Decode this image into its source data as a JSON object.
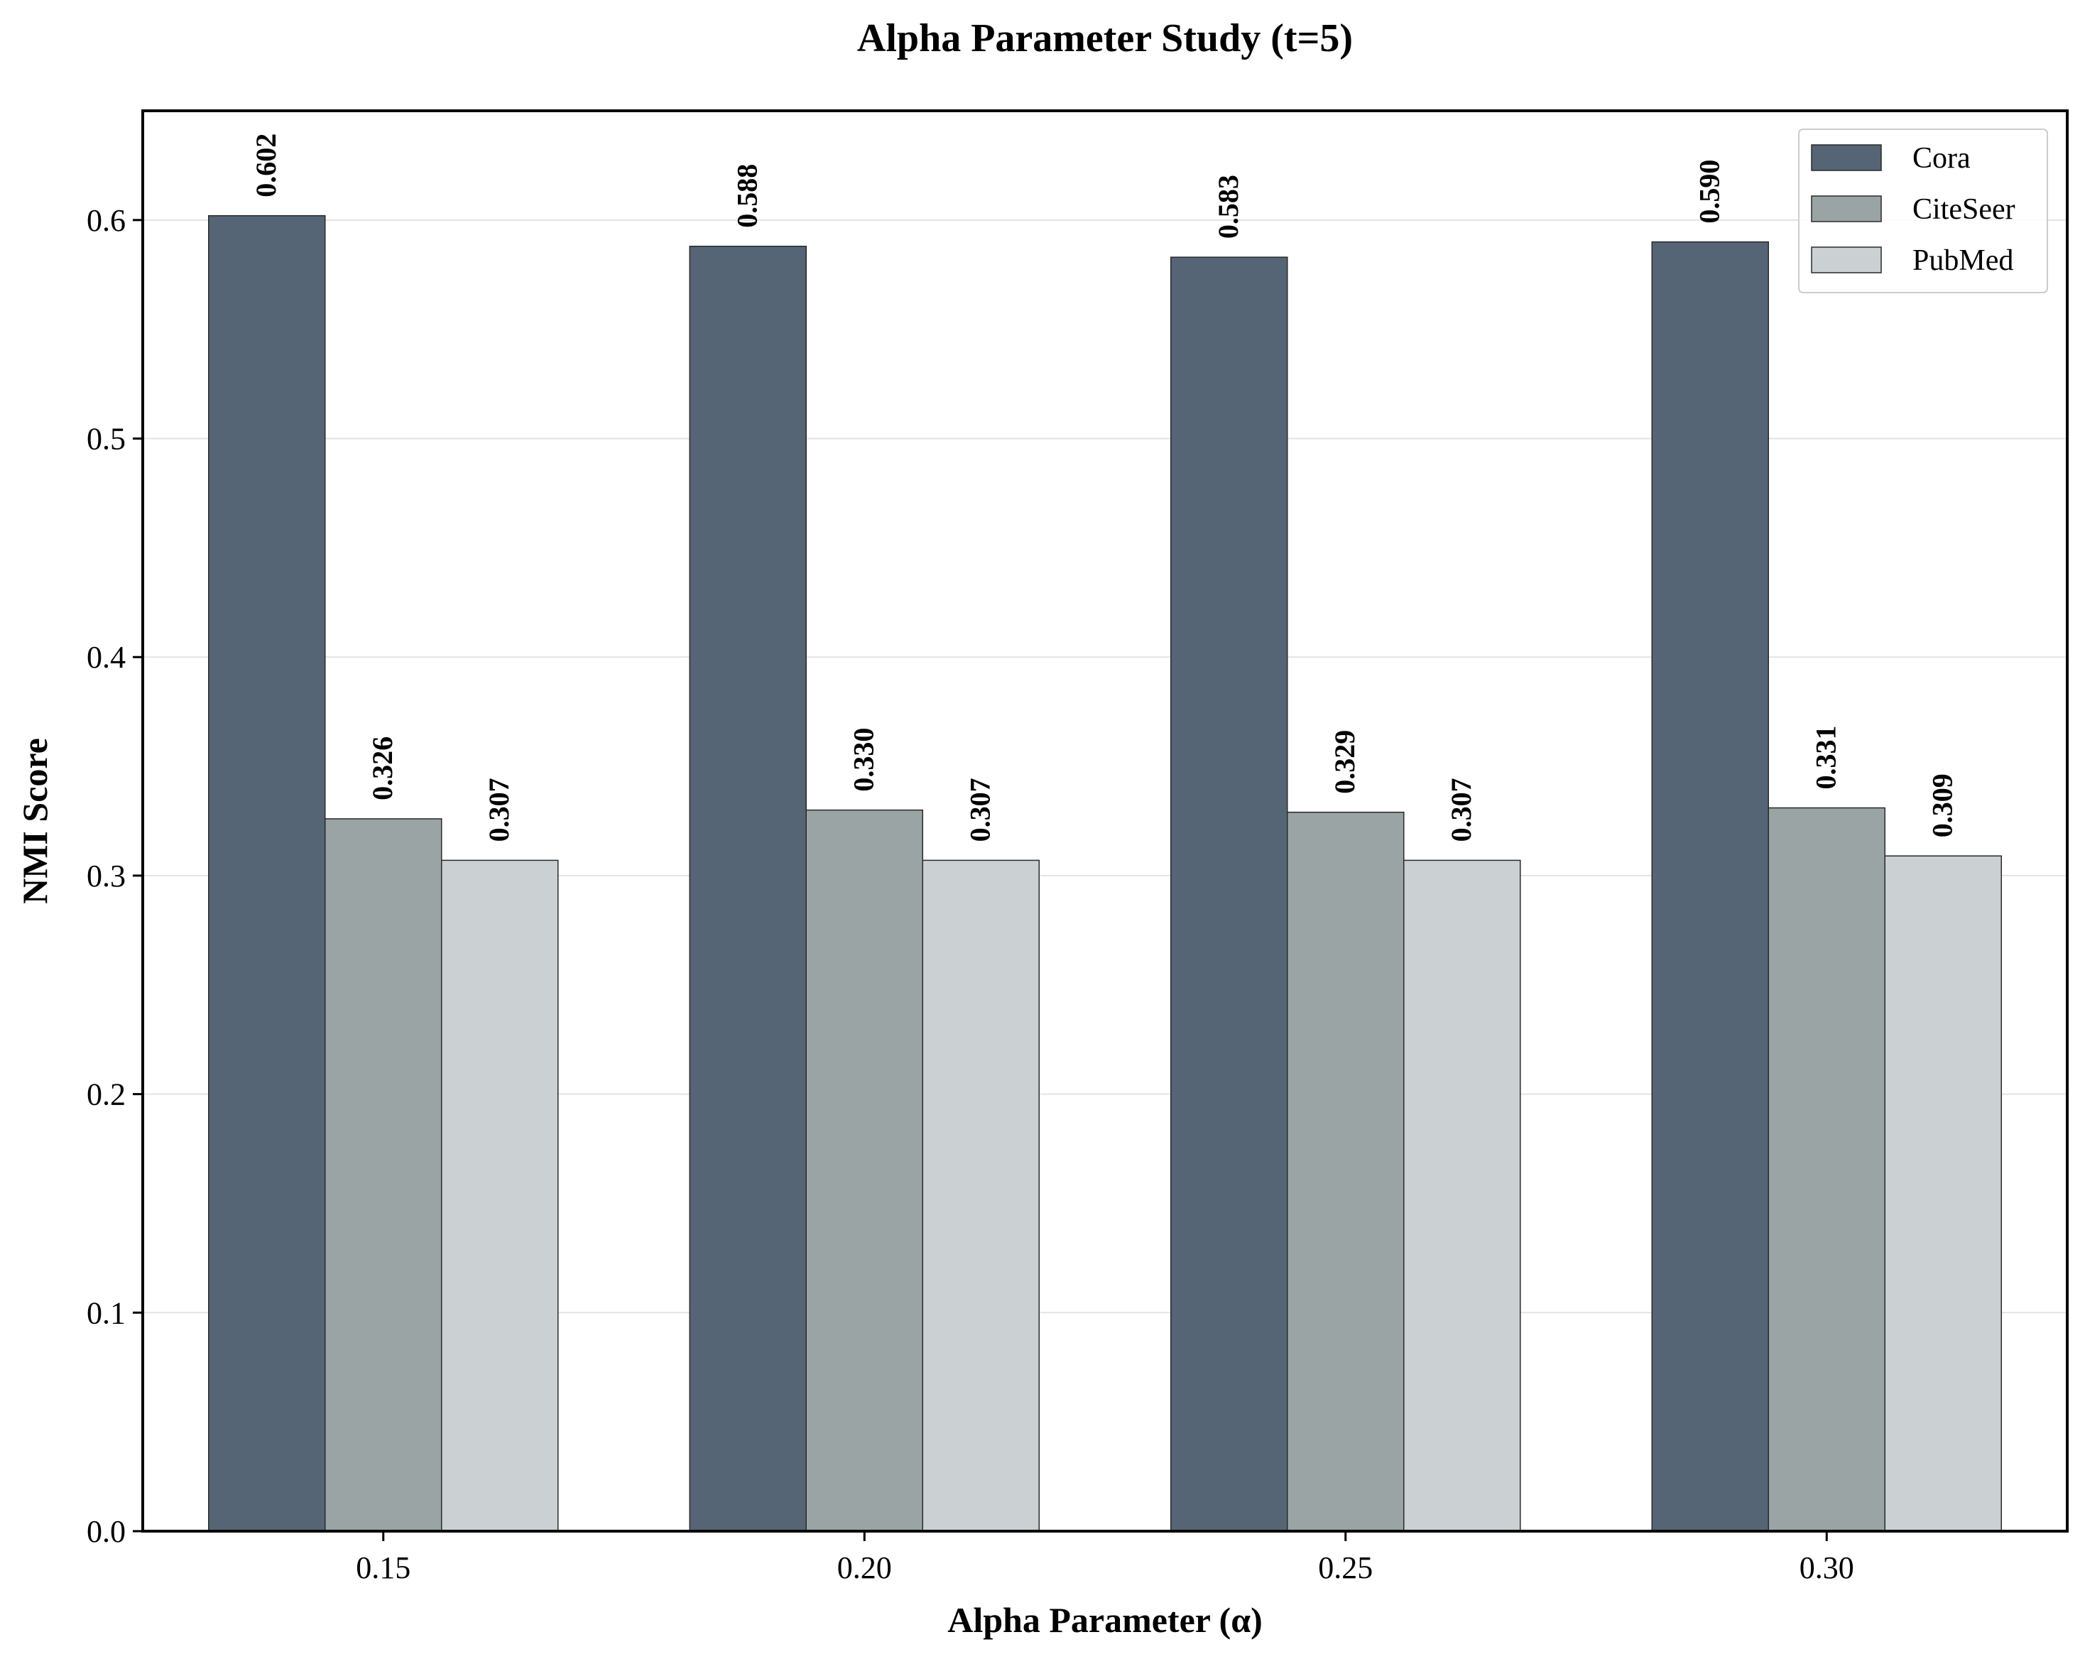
{
  "chart_data": {
    "type": "bar",
    "title": "Alpha Parameter Study (t=5)",
    "xlabel": "Alpha Parameter (α)",
    "ylabel": "NMI Score",
    "categories": [
      "0.15",
      "0.20",
      "0.25",
      "0.30"
    ],
    "series": [
      {
        "name": "Cora",
        "values": [
          0.602,
          0.588,
          0.583,
          0.59
        ],
        "labels": [
          "0.602",
          "0.588",
          "0.583",
          "0.590"
        ],
        "color": "#556575"
      },
      {
        "name": "CiteSeer",
        "values": [
          0.326,
          0.33,
          0.329,
          0.331
        ],
        "labels": [
          "0.326",
          "0.330",
          "0.329",
          "0.331"
        ],
        "color": "#9aa4a4"
      },
      {
        "name": "PubMed",
        "values": [
          0.307,
          0.307,
          0.307,
          0.309
        ],
        "labels": [
          "0.307",
          "0.307",
          "0.307",
          "0.309"
        ],
        "color": "#cbd0d3"
      }
    ],
    "ylim": [
      0,
      0.65
    ],
    "yticks": [
      "0.0",
      "0.1",
      "0.2",
      "0.3",
      "0.4",
      "0.5",
      "0.6"
    ],
    "grid": "horizontal",
    "legend_position": "top-right"
  }
}
